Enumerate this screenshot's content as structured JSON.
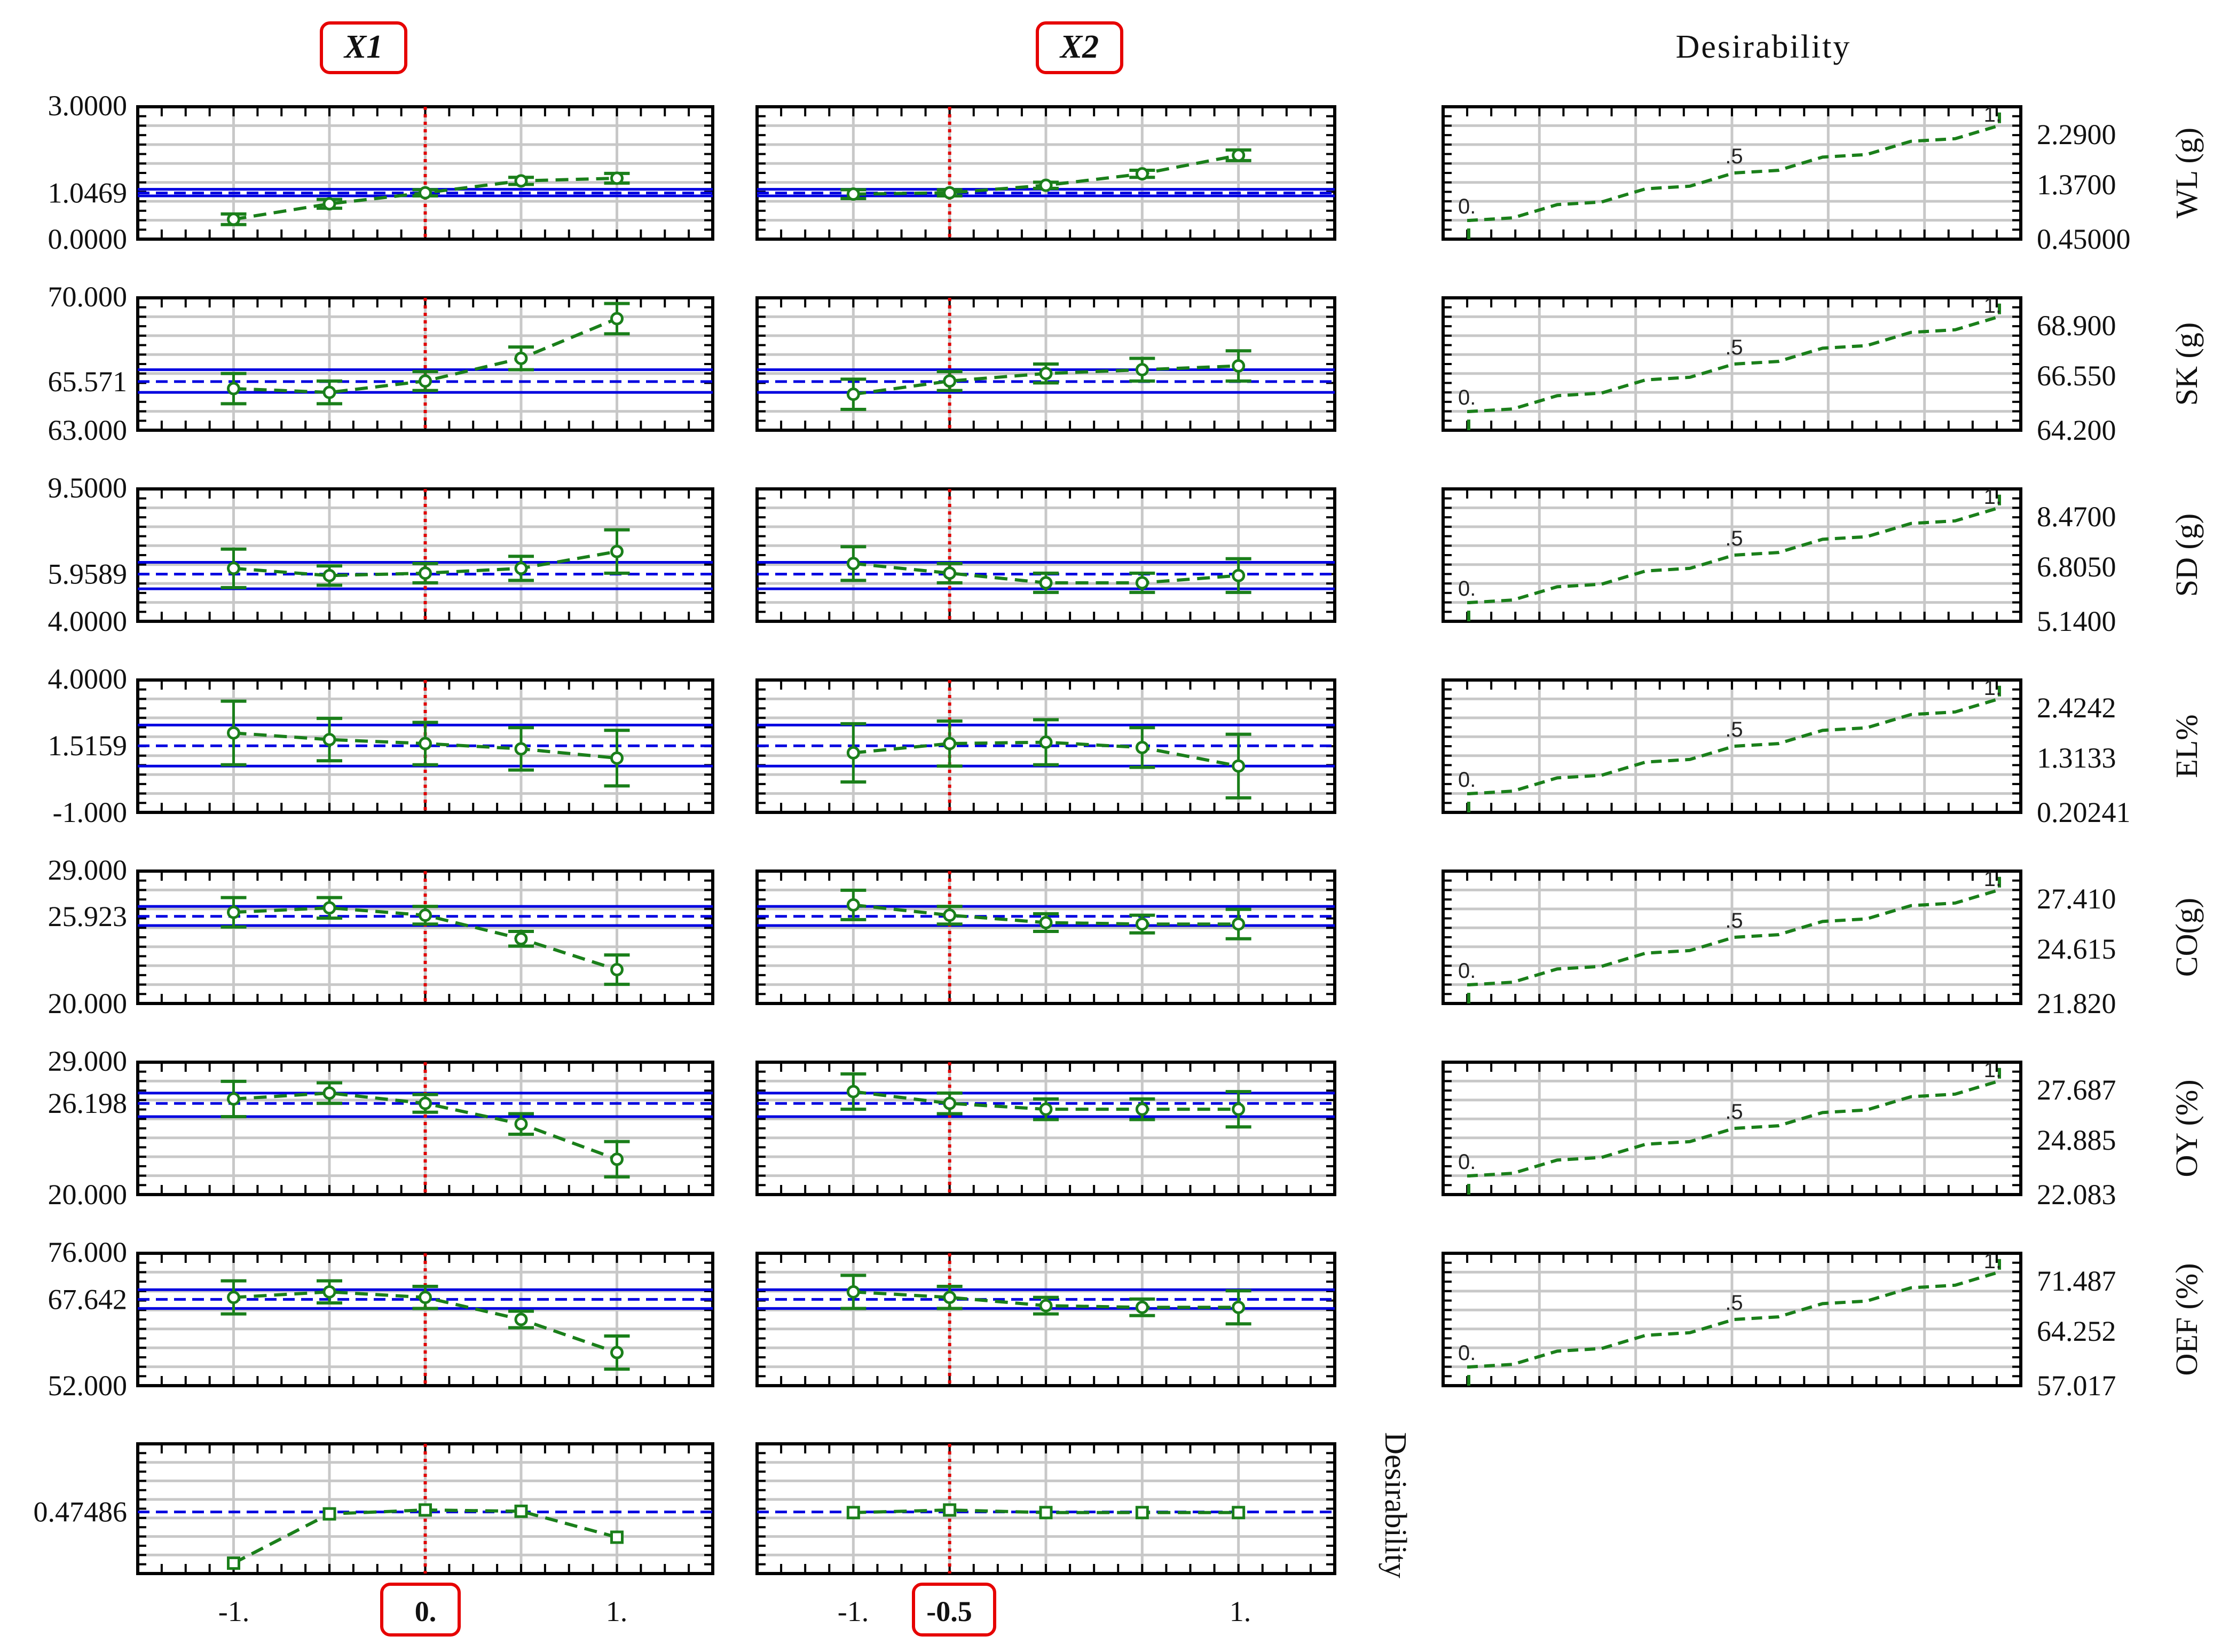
{
  "chart_data": {
    "type": "line",
    "headers": {
      "x1": "X1",
      "x2": "X2",
      "desirability": "Desirability"
    },
    "x_ticks": [
      "-1.",
      "1."
    ],
    "x_selected": {
      "x1": "0.",
      "x2": "-0.5"
    },
    "desirability_row_label": "Desirability",
    "responses": [
      {
        "name": "WL (g)",
        "axis_ticks": [
          "3.0000",
          "1.0469",
          "0.0000"
        ],
        "ylim": [
          0.0,
          3.0
        ],
        "current": 1.0469,
        "band": [
          0.98,
          1.13
        ],
        "x1": {
          "x": [
            -1,
            -0.5,
            0,
            0.5,
            1
          ],
          "y": [
            0.45,
            0.8,
            1.05,
            1.32,
            1.38
          ],
          "err": [
            0.12,
            0.1,
            0.07,
            0.08,
            0.11
          ]
        },
        "x2": {
          "x": [
            -1,
            -0.5,
            0,
            0.5,
            1
          ],
          "y": [
            1.02,
            1.05,
            1.22,
            1.48,
            1.9
          ],
          "err": [
            0.1,
            0.07,
            0.07,
            0.08,
            0.12
          ]
        },
        "desirability_ticks": [
          "2.2900",
          "1.3700",
          "0.45000"
        ],
        "desirability_range": [
          0.45,
          2.29
        ],
        "desirability_labels": [
          "0.",
          ".5",
          "1."
        ]
      },
      {
        "name": "SK (g)",
        "axis_ticks": [
          "70.000",
          "65.571",
          "63.000"
        ],
        "ylim": [
          63.0,
          70.0
        ],
        "current": 65.571,
        "band": [
          65.0,
          66.2
        ],
        "x1": {
          "x": [
            -1,
            -0.5,
            0,
            0.5,
            1
          ],
          "y": [
            65.2,
            65.0,
            65.6,
            66.8,
            68.9
          ],
          "err": [
            0.8,
            0.6,
            0.5,
            0.6,
            0.8
          ]
        },
        "x2": {
          "x": [
            -1,
            -0.5,
            0,
            0.5,
            1
          ],
          "y": [
            64.9,
            65.6,
            66.0,
            66.2,
            66.4
          ],
          "err": [
            0.8,
            0.5,
            0.5,
            0.6,
            0.8
          ]
        },
        "desirability_ticks": [
          "68.900",
          "66.550",
          "64.200"
        ],
        "desirability_range": [
          64.2,
          68.9
        ],
        "desirability_labels": [
          "0.",
          ".5",
          "1."
        ]
      },
      {
        "name": "SD (g)",
        "axis_ticks": [
          "9.5000",
          "5.9589",
          "4.0000"
        ],
        "ylim": [
          4.0,
          9.5
        ],
        "current": 5.9589,
        "band": [
          5.35,
          6.45
        ],
        "x1": {
          "x": [
            -1,
            -0.5,
            0,
            0.5,
            1
          ],
          "y": [
            6.2,
            5.9,
            6.0,
            6.2,
            6.9
          ],
          "err": [
            0.8,
            0.4,
            0.4,
            0.5,
            0.9
          ]
        },
        "x2": {
          "x": [
            -1,
            -0.5,
            0,
            0.5,
            1
          ],
          "y": [
            6.4,
            6.0,
            5.6,
            5.6,
            5.9
          ],
          "err": [
            0.7,
            0.4,
            0.4,
            0.4,
            0.7
          ]
        },
        "desirability_ticks": [
          "8.4700",
          "6.8050",
          "5.1400"
        ],
        "desirability_range": [
          5.14,
          8.47
        ],
        "desirability_labels": [
          "0.",
          ".5",
          "1."
        ]
      },
      {
        "name": "EL%",
        "axis_ticks": [
          "4.0000",
          "1.5159",
          "-1.000"
        ],
        "ylim": [
          -1.0,
          4.0
        ],
        "current": 1.5159,
        "band": [
          0.75,
          2.3
        ],
        "x1": {
          "x": [
            -1,
            -0.5,
            0,
            0.5,
            1
          ],
          "y": [
            2.0,
            1.75,
            1.6,
            1.4,
            1.05
          ],
          "err": [
            1.2,
            0.8,
            0.8,
            0.8,
            1.05
          ]
        },
        "x2": {
          "x": [
            -1,
            -0.5,
            0,
            0.5,
            1
          ],
          "y": [
            1.25,
            1.6,
            1.65,
            1.45,
            0.75
          ],
          "err": [
            1.1,
            0.85,
            0.85,
            0.75,
            1.2
          ]
        },
        "desirability_ticks": [
          "2.4242",
          "1.3133",
          "0.20241"
        ],
        "desirability_range": [
          0.20241,
          2.4242
        ],
        "desirability_labels": [
          "0.",
          ".5",
          "1."
        ]
      },
      {
        "name": "CO(g)",
        "axis_ticks": [
          "29.000",
          "25.923",
          "20.000"
        ],
        "ylim": [
          20.0,
          29.0
        ],
        "current": 25.923,
        "band": [
          25.3,
          26.6
        ],
        "x1": {
          "x": [
            -1,
            -0.5,
            0,
            0.5,
            1
          ],
          "y": [
            26.2,
            26.5,
            26.0,
            24.4,
            22.3
          ],
          "err": [
            1.0,
            0.7,
            0.6,
            0.5,
            1.0
          ]
        },
        "x2": {
          "x": [
            -1,
            -0.5,
            0,
            0.5,
            1
          ],
          "y": [
            26.7,
            26.0,
            25.5,
            25.4,
            25.4
          ],
          "err": [
            1.0,
            0.6,
            0.6,
            0.6,
            1.0
          ]
        },
        "desirability_ticks": [
          "27.410",
          "24.615",
          "21.820"
        ],
        "desirability_range": [
          21.82,
          27.41
        ],
        "desirability_labels": [
          "0.",
          ".5",
          "1."
        ]
      },
      {
        "name": "OY (%)",
        "axis_ticks": [
          "29.000",
          "26.198",
          "20.000"
        ],
        "ylim": [
          20.0,
          29.0
        ],
        "current": 26.198,
        "band": [
          25.3,
          26.9
        ],
        "x1": {
          "x": [
            -1,
            -0.5,
            0,
            0.5,
            1
          ],
          "y": [
            26.5,
            26.9,
            26.2,
            24.8,
            22.4
          ],
          "err": [
            1.2,
            0.7,
            0.6,
            0.7,
            1.2
          ]
        },
        "x2": {
          "x": [
            -1,
            -0.5,
            0,
            0.5,
            1
          ],
          "y": [
            27.0,
            26.2,
            25.8,
            25.8,
            25.8
          ],
          "err": [
            1.2,
            0.7,
            0.7,
            0.7,
            1.2
          ]
        },
        "desirability_ticks": [
          "27.687",
          "24.885",
          "22.083"
        ],
        "desirability_range": [
          22.083,
          27.687
        ],
        "desirability_labels": [
          "0.",
          ".5",
          "1."
        ]
      },
      {
        "name": "OEF (%)",
        "axis_ticks": [
          "76.000",
          "67.642",
          "52.000"
        ],
        "ylim": [
          52.0,
          76.0
        ],
        "current": 67.642,
        "band": [
          66.0,
          69.4
        ],
        "x1": {
          "x": [
            -1,
            -0.5,
            0,
            0.5,
            1
          ],
          "y": [
            68.0,
            69.0,
            68.0,
            64.0,
            58.0
          ],
          "err": [
            3.0,
            2.0,
            2.0,
            1.5,
            3.0
          ]
        },
        "x2": {
          "x": [
            -1,
            -0.5,
            0,
            0.5,
            1
          ],
          "y": [
            69.0,
            68.0,
            66.5,
            66.2,
            66.2
          ],
          "err": [
            3.0,
            2.0,
            1.5,
            1.5,
            3.0
          ]
        },
        "desirability_ticks": [
          "71.487",
          "64.252",
          "57.017"
        ],
        "desirability_range": [
          57.017,
          71.487
        ],
        "desirability_labels": [
          "0.",
          ".5",
          "1."
        ]
      }
    ],
    "desirability_row": {
      "axis_ticks": [
        "0.47486"
      ],
      "ylim": [
        0.0,
        1.0
      ],
      "current": 0.47486,
      "x1": {
        "x": [
          -1,
          -0.5,
          0,
          0.5,
          1
        ],
        "y": [
          0.08,
          0.46,
          0.49,
          0.48,
          0.28
        ]
      },
      "x2": {
        "x": [
          -1,
          -0.5,
          0,
          0.5,
          1
        ],
        "y": [
          0.47,
          0.49,
          0.47,
          0.47,
          0.47
        ]
      }
    },
    "colors": {
      "fit": "#1a7f1a",
      "band": "#0000e0",
      "current_x": "#e00000",
      "grid": "#c8c8c8",
      "highlight": "#e60000"
    },
    "grid": true
  }
}
